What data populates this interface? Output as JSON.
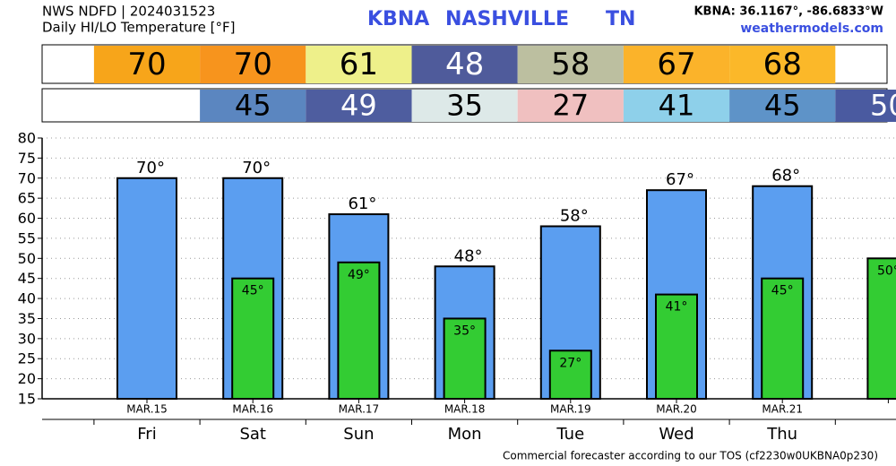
{
  "chart_data": {
    "type": "bar",
    "title": "NWS NDFD | 2024031523",
    "subtitle": "Daily HI/LO Temperature [°F]",
    "station": "KBNA",
    "city": "NASHVILLE",
    "state": "TN",
    "location": "KBNA: 36.1167°, -86.6833°W",
    "source": "weathermodels.com",
    "footer": "Commercial forecaster according to our TOS (cf2230w0UKBNA0p230)",
    "categories": [
      "MAR.15",
      "MAR.16",
      "MAR.17",
      "MAR.18",
      "MAR.19",
      "MAR.20",
      "MAR.21",
      null
    ],
    "weekdays": [
      "Fri",
      "Sat",
      "Sun",
      "Mon",
      "Tue",
      "Wed",
      "Thu",
      null
    ],
    "series": [
      {
        "color": "#5b9ef0",
        "values": [
          70,
          70,
          61,
          48,
          58,
          67,
          68,
          null
        ],
        "value_labels": [
          "70°",
          "70°",
          "61°",
          "48°",
          "58°",
          "67°",
          "68°",
          null
        ],
        "box_colors": [
          "#f7a51a",
          "#f7941d",
          "#eef08a",
          "#4f5b9b",
          "#bcbfa0",
          "#fbb32a",
          "#fbb829",
          null
        ],
        "box_text_colors": [
          "#000000",
          "#000000",
          "#000000",
          "#ffffff",
          "#000000",
          "#000000",
          "#000000",
          null
        ]
      },
      {
        "color": "#33cc33",
        "values": [
          null,
          45,
          49,
          35,
          27,
          41,
          45,
          50
        ],
        "value_labels": [
          null,
          "45°",
          "49°",
          "35°",
          "27°",
          "41°",
          "45°",
          "50°"
        ],
        "box_colors": [
          null,
          "#5b86c0",
          "#4e5d9f",
          "#dde9e8",
          "#f0c0c0",
          "#8ed0ea",
          "#5e93c8",
          "#4a5aa0"
        ],
        "box_text_colors": [
          null,
          "#000000",
          "#ffffff",
          "#000000",
          "#000000",
          "#000000",
          "#000000",
          "#ffffff"
        ]
      }
    ],
    "ylim": [
      15,
      80
    ],
    "yticks": [
      15,
      20,
      25,
      30,
      35,
      40,
      45,
      50,
      55,
      60,
      65,
      70,
      75,
      80
    ],
    "grid": true
  }
}
